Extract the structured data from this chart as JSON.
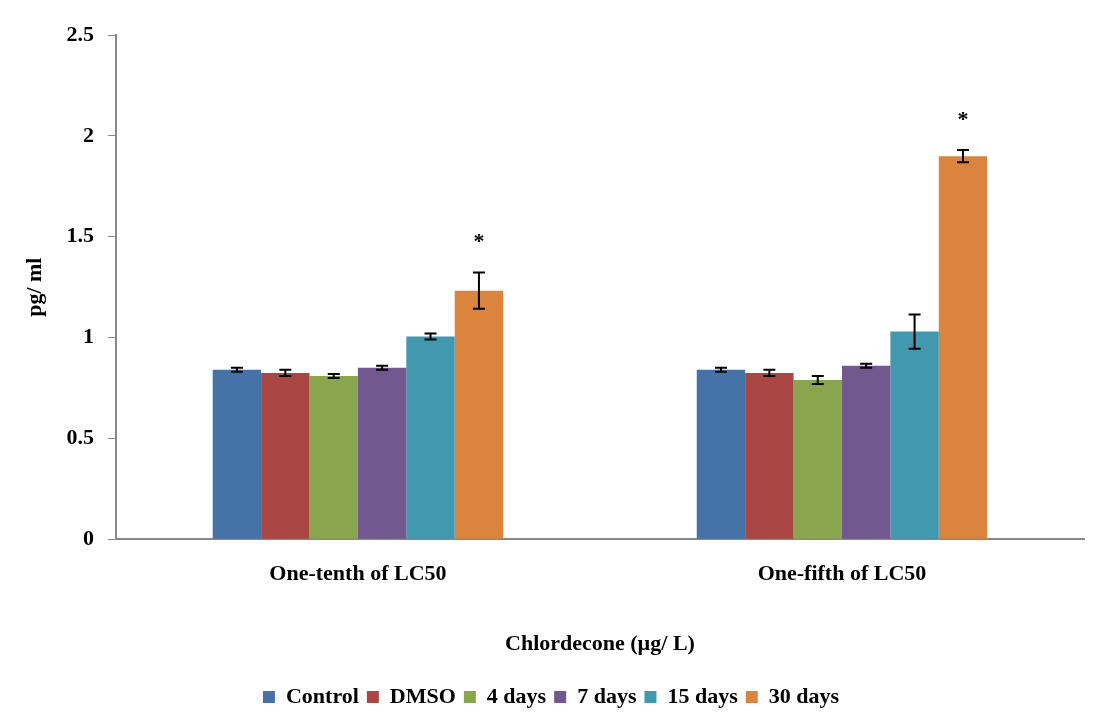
{
  "chart_data": {
    "type": "bar",
    "xlabel": "Chlordecone (µg/ L)",
    "ylabel": "pg/ ml",
    "categories": [
      "One-tenth of LC50",
      "One-fifth of LC50"
    ],
    "series": [
      {
        "name": "Control",
        "color": "#4572a7",
        "values": [
          0.84,
          0.84
        ],
        "errors": [
          0.01,
          0.01
        ]
      },
      {
        "name": "DMSO",
        "color": "#aa4643",
        "values": [
          0.825,
          0.825
        ],
        "errors": [
          0.015,
          0.015
        ]
      },
      {
        "name": "4 days",
        "color": "#89a54e",
        "values": [
          0.81,
          0.79
        ],
        "errors": [
          0.01,
          0.02
        ]
      },
      {
        "name": "7 days",
        "color": "#71588f",
        "values": [
          0.85,
          0.86
        ],
        "errors": [
          0.01,
          0.01
        ]
      },
      {
        "name": "15 days",
        "color": "#4198af",
        "values": [
          1.005,
          1.03
        ],
        "errors": [
          0.015,
          0.085
        ]
      },
      {
        "name": "30 days",
        "color": "#db843d",
        "values": [
          1.233,
          1.9
        ],
        "errors": [
          0.09,
          0.03
        ]
      }
    ],
    "ylim": [
      0,
      2.5
    ],
    "yticks": [
      0,
      0.5,
      1,
      1.5,
      2,
      2.5
    ],
    "grid": false,
    "legend": "bottom",
    "annotations": [
      "*",
      "*"
    ]
  }
}
